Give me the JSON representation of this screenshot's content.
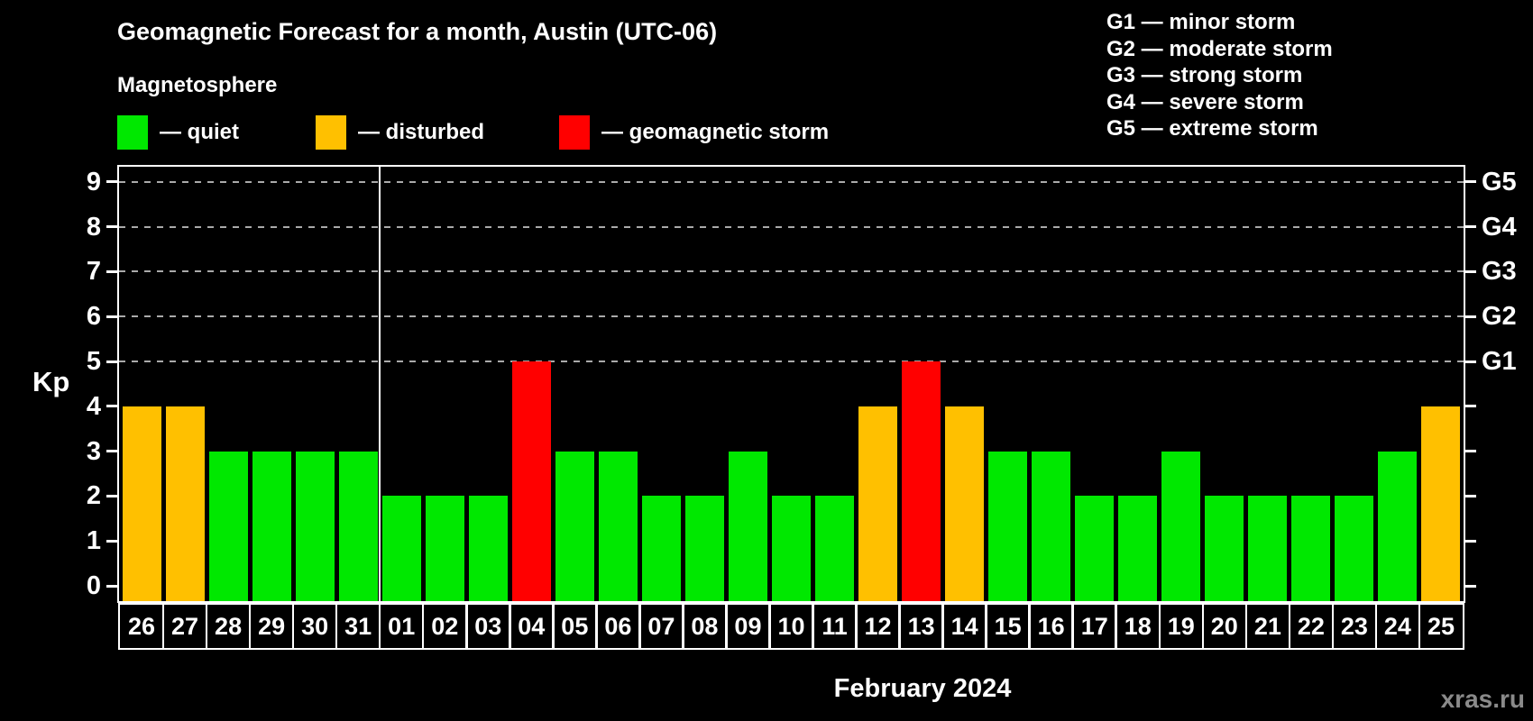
{
  "title": "Geomagnetic Forecast for a month, Austin (UTC-06)",
  "subtitle": "Magnetosphere",
  "legend": {
    "items": [
      {
        "state": "quiet",
        "label": "— quiet"
      },
      {
        "state": "disturbed",
        "label": "— disturbed"
      },
      {
        "state": "storm",
        "label": "— geomagnetic storm"
      }
    ]
  },
  "g_legend": [
    "G1 — minor storm",
    "G2 — moderate storm",
    "G3 — strong storm",
    "G4 — severe storm",
    "G5 — extreme storm"
  ],
  "axis": {
    "y_label": "Kp",
    "y_ticks": [
      0,
      1,
      2,
      3,
      4,
      5,
      6,
      7,
      8,
      9
    ],
    "g_labels": [
      {
        "level": 5,
        "label": "G1"
      },
      {
        "level": 6,
        "label": "G2"
      },
      {
        "level": 7,
        "label": "G3"
      },
      {
        "level": 8,
        "label": "G4"
      },
      {
        "level": 9,
        "label": "G5"
      }
    ]
  },
  "colors": {
    "quiet": "#00e800",
    "disturbed": "#ffc000",
    "storm": "#ff0000",
    "grid": "#aaaaaa",
    "axis": "#ffffff",
    "background": "#000000",
    "watermark": "#8a8a8a"
  },
  "chart_data": {
    "type": "bar",
    "title": "Geomagnetic Forecast for a month, Austin (UTC-06)",
    "ylabel": "Kp",
    "ylim": [
      0,
      9
    ],
    "gridlines": [
      5,
      6,
      7,
      8,
      9
    ],
    "grid": "dashed, G-storm levels only",
    "legend_position": "top",
    "categories": [
      "26",
      "27",
      "28",
      "29",
      "30",
      "31",
      "01",
      "02",
      "03",
      "04",
      "05",
      "06",
      "07",
      "08",
      "09",
      "10",
      "11",
      "12",
      "13",
      "14",
      "15",
      "16",
      "17",
      "18",
      "19",
      "20",
      "21",
      "22",
      "23",
      "24",
      "25"
    ],
    "values": [
      4,
      4,
      3,
      3,
      3,
      3,
      2,
      2,
      2,
      5,
      3,
      3,
      2,
      2,
      3,
      2,
      2,
      4,
      5,
      4,
      3,
      3,
      2,
      2,
      3,
      2,
      2,
      2,
      2,
      3,
      4
    ],
    "states": [
      "disturbed",
      "disturbed",
      "quiet",
      "quiet",
      "quiet",
      "quiet",
      "quiet",
      "quiet",
      "quiet",
      "storm",
      "quiet",
      "quiet",
      "quiet",
      "quiet",
      "quiet",
      "quiet",
      "quiet",
      "disturbed",
      "storm",
      "disturbed",
      "quiet",
      "quiet",
      "quiet",
      "quiet",
      "quiet",
      "quiet",
      "quiet",
      "quiet",
      "quiet",
      "quiet",
      "disturbed"
    ],
    "month_separator_after_index": 5,
    "xlabel": "February 2024"
  },
  "xaxis_title": "February 2024",
  "watermark": "xras.ru"
}
